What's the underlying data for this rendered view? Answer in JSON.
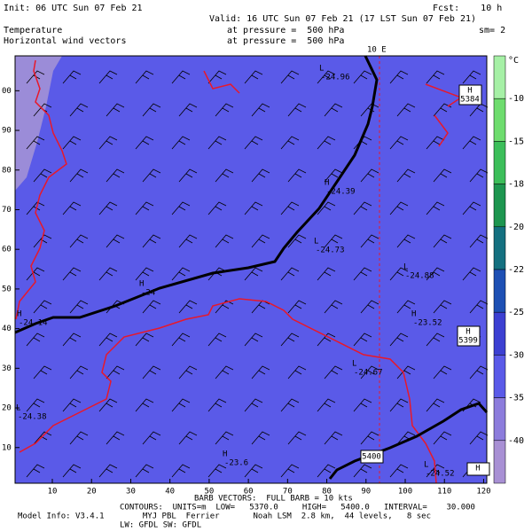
{
  "header": {
    "init": "Init: 06 UTC Sun 07 Feb 21",
    "forecast": "Fcst:    10 h",
    "valid": "Valid: 16 UTC Sun 07 Feb 21 (17 LST Sun 07 Feb 21)",
    "field1": "Temperature",
    "field2": "Horizontal wind vectors",
    "pressure1": "at pressure =  500 hPa",
    "pressure2": "at pressure =  500 hPa",
    "smoothing": "sm= 2"
  },
  "map": {
    "xlim": [
      0.5,
      120.8
    ],
    "ylim": [
      1,
      108.8
    ],
    "xticks": [
      10,
      20,
      30,
      40,
      50,
      60,
      70,
      80,
      90,
      100,
      110,
      120
    ],
    "yticks": [
      10,
      20,
      30,
      40,
      50,
      60,
      70,
      80,
      90,
      {
        "value": 100,
        "label": "00"
      }
    ],
    "meridian_label": "10 E",
    "centers": [
      {
        "symbol": "L",
        "value": -24.96
      },
      {
        "symbol": "H",
        "value": -24.39
      },
      {
        "symbol": "L",
        "value": -24.73
      },
      {
        "symbol": "L",
        "value": -24.88
      },
      {
        "symbol": "H",
        "value": -24
      },
      {
        "symbol": "H",
        "value": -24.14
      },
      {
        "symbol": "H",
        "value": -23.52
      },
      {
        "symbol": "L",
        "value": -24.67
      },
      {
        "symbol": "L",
        "value": -24.38
      },
      {
        "symbol": "H",
        "value": -23.6
      },
      {
        "symbol": "L",
        "value": -24.52
      }
    ],
    "boxes": [
      {
        "symbol": "H",
        "value": 5384
      },
      {
        "symbol": "H",
        "value": 5399
      },
      {
        "value": 5400
      },
      {
        "symbol": "H"
      }
    ]
  },
  "colorbar": {
    "unit": "°C",
    "ticks": [
      -10,
      -15,
      -18,
      -20,
      -22,
      -25,
      -30,
      -35,
      -40
    ],
    "colors": [
      "#a6f0a6",
      "#6edc6e",
      "#3cbe5a",
      "#1e9650",
      "#147080",
      "#1e50b4",
      "#3c40d2",
      "#5a5ae8",
      "#8c7cdc",
      "#a890d4"
    ]
  },
  "footer": {
    "barbs": "BARB VECTORS:  FULL BARB = 10 kts",
    "contours": "CONTOURS:  UNITS=m  LOW=   5370.0     HIGH=   5400.0   INTERVAL=    30.000",
    "model": "Model Info: V3.4.1        MYJ PBL  Ferrier       Noah LSM  2.8 km,  44 levels,   8 sec",
    "radiation": "LW: GFDL SW: GFDL"
  }
}
